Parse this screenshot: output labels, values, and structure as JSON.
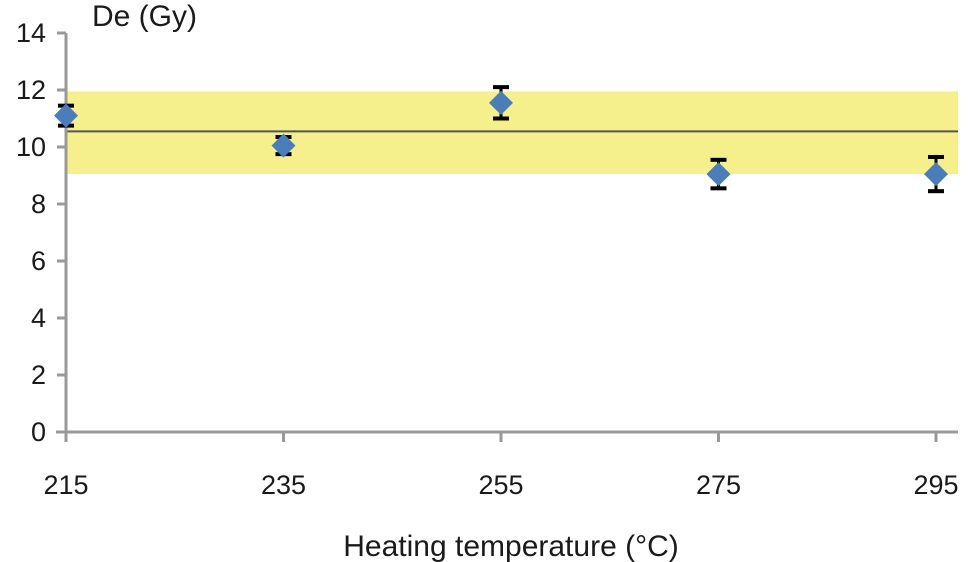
{
  "chart_data": {
    "type": "scatter",
    "x": [
      215,
      235,
      255,
      275,
      295
    ],
    "y": [
      11.1,
      10.05,
      11.55,
      9.05,
      9.05
    ],
    "y_error": [
      0.35,
      0.3,
      0.55,
      0.5,
      0.6
    ],
    "xlabel": "Heating temperature (°C)",
    "ylabel": "De (Gy)",
    "xlim": [
      215,
      295
    ],
    "ylim": [
      0,
      14
    ],
    "x_ticks": [
      "215",
      "235",
      "255",
      "275",
      "295"
    ],
    "y_ticks": [
      "0",
      "2",
      "4",
      "6",
      "8",
      "10",
      "12",
      "14"
    ],
    "reference_line": 10.55,
    "band": [
      9.05,
      11.95
    ],
    "grid": false,
    "marker": "diamond",
    "colors": {
      "marker": "#4a7ebb",
      "band": "#f5f08c",
      "reference_line": "#555555",
      "axis": "#999999",
      "error_bar": "#000000"
    }
  }
}
